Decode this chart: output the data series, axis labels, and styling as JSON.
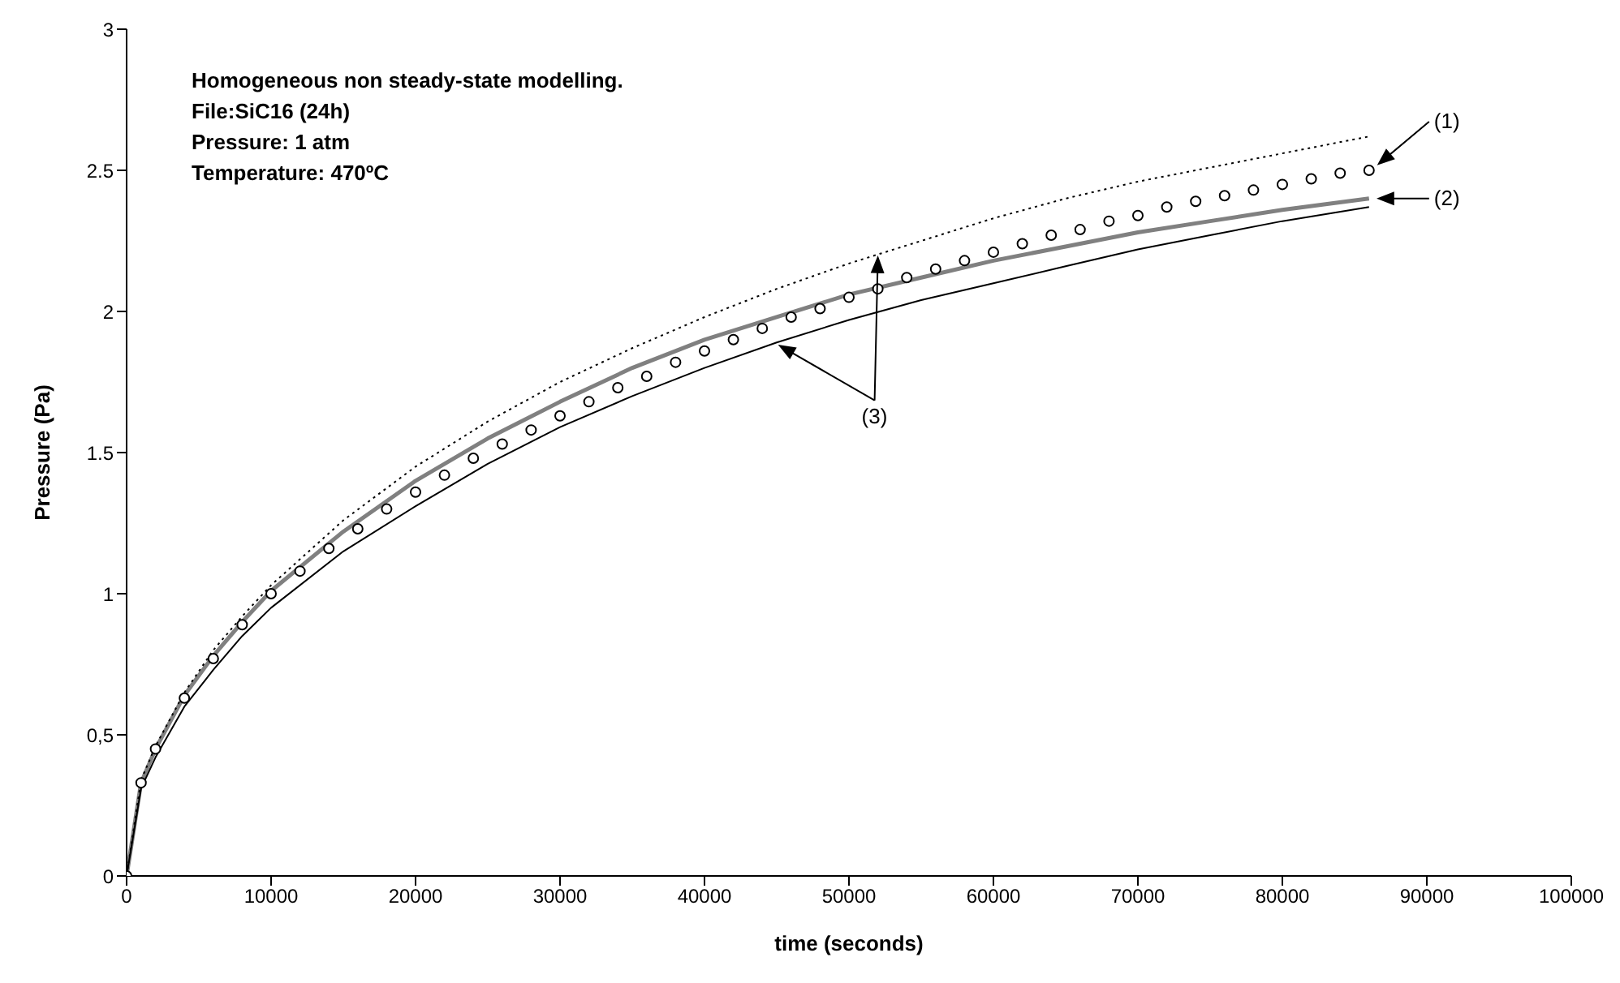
{
  "chart_data": {
    "type": "line",
    "xlabel": "time (seconds)",
    "ylabel": "Pressure (Pa)",
    "annotations": [
      "Homogeneous non steady-state modelling.",
      "File:SiC16 (24h)",
      "Pressure: 1 atm",
      "Temperature: 470ºC",
      "(1)",
      "(2)",
      "(3)"
    ],
    "grid": false,
    "legend": false,
    "xlim": [
      0,
      100000
    ],
    "xticks": [
      0,
      10000,
      20000,
      30000,
      40000,
      50000,
      60000,
      70000,
      80000,
      90000,
      100000
    ],
    "ylim": [
      0,
      3
    ],
    "yticks": [
      0,
      {
        "value": 0.5,
        "label": "0,5"
      },
      1,
      1.5,
      2,
      2.5,
      3
    ],
    "series": [
      {
        "type": "scatter",
        "marker": "circle",
        "color": "#000000",
        "x": [
          0,
          1000,
          2000,
          4000,
          6000,
          8000,
          10000,
          12000,
          14000,
          16000,
          18000,
          20000,
          22000,
          24000,
          26000,
          28000,
          30000,
          32000,
          34000,
          36000,
          38000,
          40000,
          42000,
          44000,
          46000,
          48000,
          50000,
          52000,
          54000,
          56000,
          58000,
          60000,
          62000,
          64000,
          66000,
          68000,
          70000,
          72000,
          74000,
          76000,
          78000,
          80000,
          82000,
          84000,
          86000
        ],
        "values": [
          0,
          0.33,
          0.45,
          0.63,
          0.77,
          0.89,
          1.0,
          1.08,
          1.16,
          1.23,
          1.3,
          1.36,
          1.42,
          1.48,
          1.53,
          1.58,
          1.63,
          1.68,
          1.73,
          1.77,
          1.82,
          1.86,
          1.9,
          1.94,
          1.98,
          2.01,
          2.05,
          2.08,
          2.12,
          2.15,
          2.18,
          2.21,
          2.24,
          2.27,
          2.29,
          2.32,
          2.34,
          2.37,
          2.39,
          2.41,
          2.43,
          2.45,
          2.47,
          2.49,
          2.5
        ]
      },
      {
        "marker": "none",
        "line_style": "solid",
        "color": "#808080",
        "x": [
          0,
          1000,
          2000,
          4000,
          6000,
          8000,
          10000,
          15000,
          20000,
          25000,
          30000,
          35000,
          40000,
          45000,
          50000,
          55000,
          60000,
          65000,
          70000,
          75000,
          80000,
          86000
        ],
        "values": [
          0,
          0.33,
          0.45,
          0.64,
          0.78,
          0.9,
          1.01,
          1.22,
          1.4,
          1.55,
          1.68,
          1.8,
          1.9,
          1.98,
          2.06,
          2.12,
          2.18,
          2.23,
          2.28,
          2.32,
          2.36,
          2.4
        ]
      },
      {
        "marker": "none",
        "line_style": "dotted",
        "color": "#000000",
        "x": [
          0,
          1000,
          2000,
          4000,
          6000,
          8000,
          10000,
          15000,
          20000,
          25000,
          30000,
          35000,
          40000,
          45000,
          50000,
          55000,
          60000,
          65000,
          70000,
          75000,
          80000,
          86000
        ],
        "values": [
          0,
          0.34,
          0.46,
          0.65,
          0.8,
          0.92,
          1.03,
          1.26,
          1.45,
          1.61,
          1.75,
          1.87,
          1.98,
          2.08,
          2.17,
          2.25,
          2.33,
          2.4,
          2.46,
          2.51,
          2.56,
          2.62
        ]
      },
      {
        "marker": "none",
        "line_style": "solid",
        "color": "#000000",
        "x": [
          0,
          1000,
          2000,
          4000,
          6000,
          8000,
          10000,
          15000,
          20000,
          25000,
          30000,
          35000,
          40000,
          45000,
          50000,
          55000,
          60000,
          65000,
          70000,
          75000,
          80000,
          86000
        ],
        "values": [
          0,
          0.31,
          0.42,
          0.6,
          0.73,
          0.85,
          0.95,
          1.15,
          1.31,
          1.46,
          1.59,
          1.7,
          1.8,
          1.89,
          1.97,
          2.04,
          2.1,
          2.16,
          2.22,
          2.27,
          2.32,
          2.37
        ]
      }
    ]
  }
}
